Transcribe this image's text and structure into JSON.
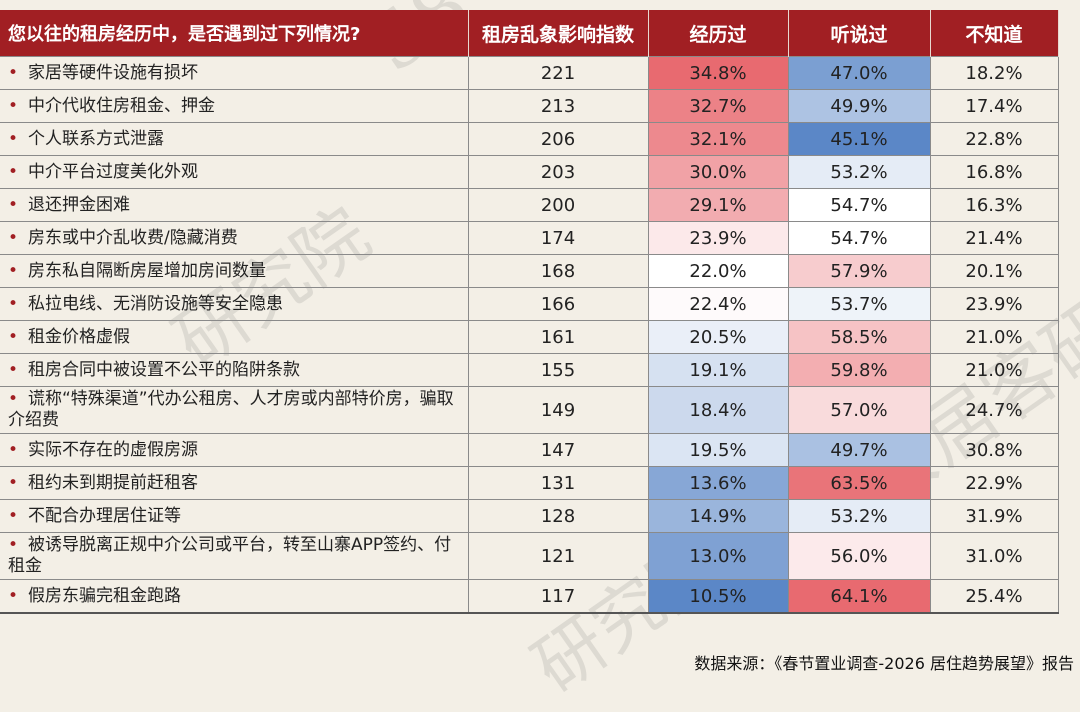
{
  "chart_data": {
    "type": "table",
    "columns": [
      "您以往的租房经历中，是否遇到过下列情况?",
      "租房乱象影响指数",
      "经历过",
      "听说过",
      "不知道"
    ],
    "rows": [
      {
        "item": "家居等硬件设施有损坏",
        "index": 221,
        "experienced": "34.8%",
        "heard": "47.0%",
        "unknown": "18.2%"
      },
      {
        "item": "中介代收住房租金、押金",
        "index": 213,
        "experienced": "32.7%",
        "heard": "49.9%",
        "unknown": "17.4%"
      },
      {
        "item": "个人联系方式泄露",
        "index": 206,
        "experienced": "32.1%",
        "heard": "45.1%",
        "unknown": "22.8%"
      },
      {
        "item": "中介平台过度美化外观",
        "index": 203,
        "experienced": "30.0%",
        "heard": "53.2%",
        "unknown": "16.8%"
      },
      {
        "item": "退还押金困难",
        "index": 200,
        "experienced": "29.1%",
        "heard": "54.7%",
        "unknown": "16.3%"
      },
      {
        "item": "房东或中介乱收费/隐藏消费",
        "index": 174,
        "experienced": "23.9%",
        "heard": "54.7%",
        "unknown": "21.4%"
      },
      {
        "item": "房东私自隔断房屋增加房间数量",
        "index": 168,
        "experienced": "22.0%",
        "heard": "57.9%",
        "unknown": "20.1%"
      },
      {
        "item": "私拉电线、无消防设施等安全隐患",
        "index": 166,
        "experienced": "22.4%",
        "heard": "53.7%",
        "unknown": "23.9%"
      },
      {
        "item": "租金价格虚假",
        "index": 161,
        "experienced": "20.5%",
        "heard": "58.5%",
        "unknown": "21.0%"
      },
      {
        "item": "租房合同中被设置不公平的陷阱条款",
        "index": 155,
        "experienced": "19.1%",
        "heard": "59.8%",
        "unknown": "21.0%"
      },
      {
        "item": "谎称“特殊渠道”代办公租房、人才房或内部特价房，骗取介绍费",
        "index": 149,
        "experienced": "18.4%",
        "heard": "57.0%",
        "unknown": "24.7%"
      },
      {
        "item": "实际不存在的虚假房源",
        "index": 147,
        "experienced": "19.5%",
        "heard": "49.7%",
        "unknown": "30.8%"
      },
      {
        "item": "租约未到期提前赶租客",
        "index": 131,
        "experienced": "13.6%",
        "heard": "63.5%",
        "unknown": "22.9%"
      },
      {
        "item": "不配合办理居住证等",
        "index": 128,
        "experienced": "14.9%",
        "heard": "53.2%",
        "unknown": "31.9%"
      },
      {
        "item": "被诱导脱离正规中介公司或平台，转至山寨APP签约、付租金",
        "index": 121,
        "experienced": "13.0%",
        "heard": "56.0%",
        "unknown": "31.0%"
      },
      {
        "item": "假房东骗完租金跑路",
        "index": 117,
        "experienced": "10.5%",
        "heard": "64.1%",
        "unknown": "25.4%"
      }
    ],
    "heat_colors": {
      "high": "#e86a70",
      "mid": "#ffffff",
      "low": "#5b87c7"
    }
  },
  "bullet": "•",
  "source": "数据来源：《春节置业调查-2026 居住趋势展望》报告",
  "colors": {
    "header_bg": "#a11f23",
    "page_bg": "#f3efe6"
  }
}
